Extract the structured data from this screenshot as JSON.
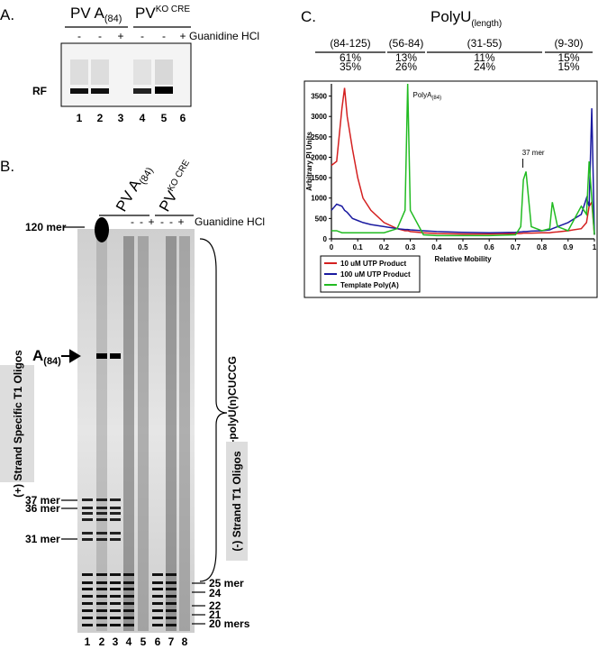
{
  "panel_a": {
    "label": "A.",
    "group1": {
      "text": "PV A",
      "sub": "(84)"
    },
    "group2": {
      "text": "PV",
      "sup": "KO CRE"
    },
    "treatments": [
      "-",
      "-",
      "+",
      "-",
      "-",
      "+"
    ],
    "treatment_label": "Guanidine HCl",
    "band_label": "RF",
    "lanes": [
      1,
      2,
      3,
      4,
      5,
      6
    ]
  },
  "panel_b": {
    "label": "B.",
    "group1": {
      "text": "PV A",
      "sub": "(84)"
    },
    "group2": {
      "text": "PV",
      "sup": "KO CRE"
    },
    "treatments": [
      "-",
      "-",
      "+",
      "-",
      "-",
      "+"
    ],
    "treatment_label": "Guanidine HCl",
    "left_markers": [
      "120 mer",
      "37 mer",
      "36 mer",
      "31 mer"
    ],
    "a84": {
      "text": "A",
      "sub": "(84)"
    },
    "plus_box": "(+) Strand Specific T1 Oligos",
    "minus_box": "(-) Strand T1 Oligos",
    "bracket_label": "VPg-polyU(n)CUCCG",
    "right_markers": [
      "25 mer",
      "24",
      "22",
      "21",
      "20 mers"
    ],
    "lanes": [
      1,
      2,
      3,
      4,
      5,
      6,
      7,
      8
    ]
  },
  "panel_c": {
    "label": "C.",
    "title": {
      "text": "PolyU",
      "sub": "(length)"
    },
    "ranges": [
      {
        "range": "(84-125)",
        "pct_10": "61%",
        "pct_100": "35%"
      },
      {
        "range": "(56-84)",
        "pct_10": "13%",
        "pct_100": "26%"
      },
      {
        "range": "(31-55)",
        "pct_10": "11%",
        "pct_100": "24%"
      },
      {
        "range": "(9-30)",
        "pct_10": "15%",
        "pct_100": "15%"
      }
    ]
  },
  "chart_data": {
    "type": "line",
    "x_label": "Relative Mobility",
    "y_label": "Arbitrary PI Units",
    "xlim": [
      0,
      1
    ],
    "ylim": [
      0,
      3800
    ],
    "xticks": [
      0,
      0.1,
      0.2,
      0.3,
      0.4,
      0.5,
      0.6,
      0.7,
      0.8,
      0.9,
      1
    ],
    "yticks": [
      0,
      500,
      1000,
      1500,
      2000,
      2500,
      3000,
      3500
    ],
    "x": [
      0,
      0.02,
      0.04,
      0.05,
      0.06,
      0.08,
      0.1,
      0.12,
      0.15,
      0.2,
      0.25,
      0.28,
      0.29,
      0.3,
      0.35,
      0.4,
      0.5,
      0.6,
      0.7,
      0.72,
      0.73,
      0.74,
      0.76,
      0.8,
      0.83,
      0.84,
      0.86,
      0.9,
      0.95,
      0.97,
      0.98,
      0.99,
      1
    ],
    "series": [
      {
        "name": "10 uM UTP Product",
        "color": "#d42020",
        "values": [
          1800,
          1900,
          3200,
          3700,
          3000,
          2200,
          1500,
          1000,
          700,
          400,
          250,
          200,
          200,
          180,
          150,
          130,
          120,
          120,
          130,
          130,
          140,
          140,
          140,
          150,
          150,
          160,
          170,
          200,
          250,
          400,
          800,
          900,
          100
        ]
      },
      {
        "name": "100 uM UTP Product",
        "color": "#1a1aa0",
        "values": [
          700,
          850,
          800,
          700,
          650,
          500,
          450,
          400,
          350,
          300,
          250,
          230,
          230,
          220,
          200,
          180,
          160,
          150,
          160,
          170,
          180,
          180,
          190,
          200,
          220,
          250,
          300,
          400,
          600,
          1000,
          800,
          3200,
          100
        ]
      },
      {
        "name": "Template Poly(A)",
        "color": "#22bb22",
        "values": [
          200,
          200,
          150,
          150,
          150,
          150,
          150,
          150,
          150,
          150,
          250,
          700,
          3800,
          700,
          100,
          80,
          80,
          80,
          100,
          300,
          1450,
          1650,
          300,
          200,
          250,
          900,
          300,
          200,
          800,
          600,
          1900,
          1000,
          100
        ]
      }
    ],
    "annotations": [
      {
        "text": "PolyA",
        "sub": "(84)"
      },
      {
        "text": "37 mer"
      }
    ]
  }
}
